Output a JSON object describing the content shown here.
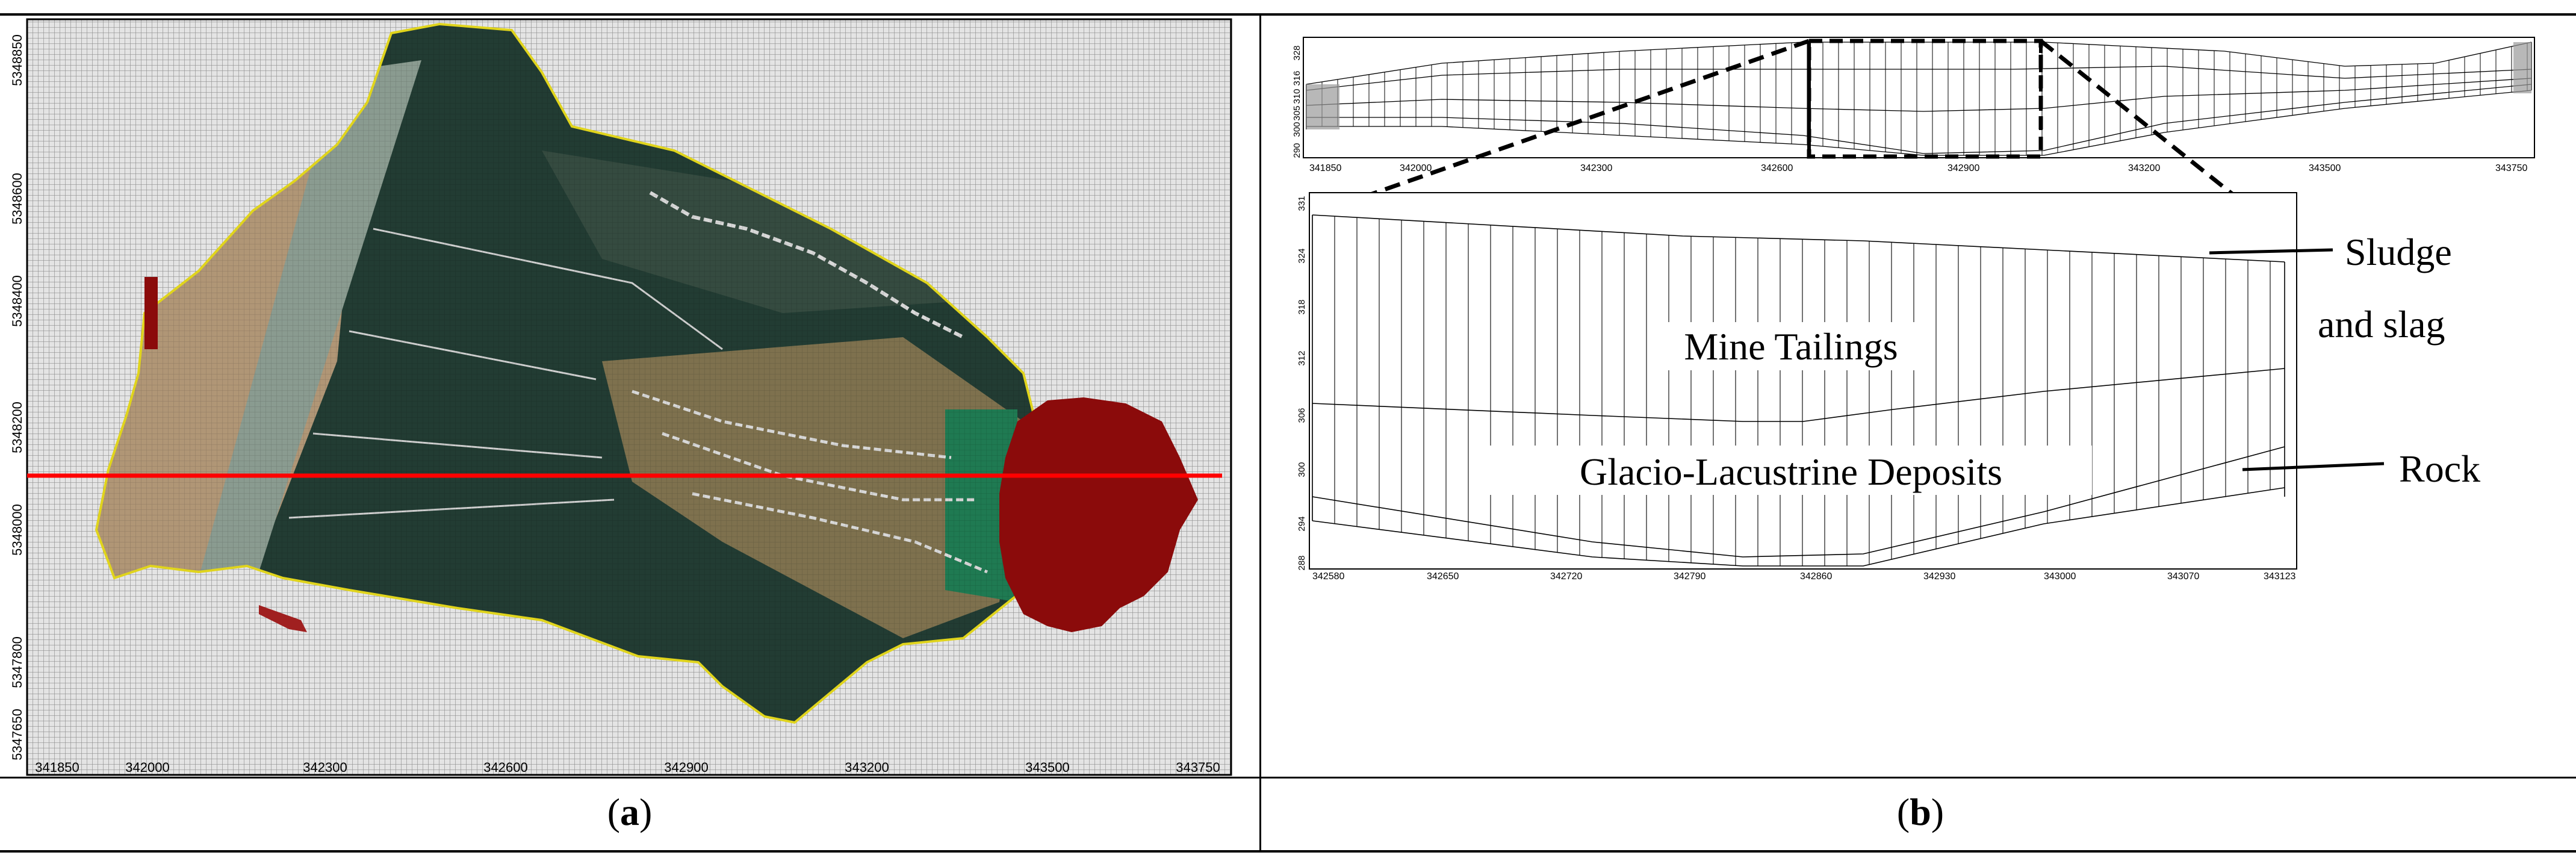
{
  "panels": {
    "a": {
      "label_open": "(",
      "label_letter": "a",
      "label_close": ")"
    },
    "b": {
      "label_open": "(",
      "label_letter": "b",
      "label_close": ")"
    }
  },
  "map": {
    "x_ticks": [
      "341850",
      "342000",
      "342300",
      "342600",
      "342900",
      "343200",
      "343500",
      "343750"
    ],
    "y_ticks": [
      "5348850",
      "5348600",
      "5348400",
      "5348200",
      "5348000",
      "5347800",
      "5347650"
    ],
    "colors": {
      "grid_background": "#e6e6e6",
      "grid_line": "#9a9a9a",
      "vegetation": "#1f3a30",
      "tailings_brown": "#b39a78",
      "sludge_red": "#8b0b0b",
      "boundary_yellow": "#e0d41c",
      "section_line": "#ff0000",
      "pond_green": "#1f7a52"
    }
  },
  "section_overview": {
    "x_ticks": [
      "341850",
      "342000",
      "342300",
      "342600",
      "342900",
      "343200",
      "343500",
      "343750"
    ],
    "y_ticks": [
      "328",
      "316",
      "310",
      "305",
      "300",
      "290"
    ]
  },
  "section_detail": {
    "x_ticks": [
      "342580",
      "342650",
      "342720",
      "342790",
      "342860",
      "342930",
      "343000",
      "343070",
      "343123"
    ],
    "y_ticks": [
      "331",
      "324",
      "318",
      "312",
      "306",
      "300",
      "294",
      "288"
    ],
    "labels": {
      "mine_tailings": "Mine Tailings",
      "glacio": "Glacio-Lacustrine Deposits",
      "sludge_line1": "Sludge",
      "sludge_line2": "and slag",
      "rock": "Rock"
    }
  }
}
